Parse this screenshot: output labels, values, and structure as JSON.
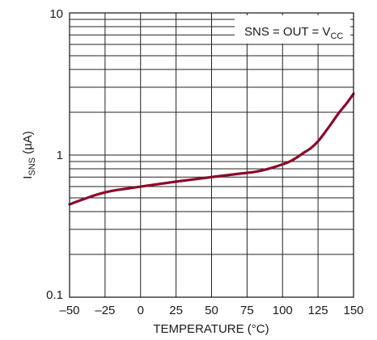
{
  "chart_data": {
    "type": "line",
    "title": "",
    "xlabel": "TEMPERATURE (°C)",
    "ylabel": "I",
    "ylabel_sub": "SNS",
    "ylabel_unit": " (µA)",
    "x_scale": "linear",
    "y_scale": "log",
    "xlim": [
      -50,
      150
    ],
    "ylim": [
      0.1,
      10
    ],
    "x_ticks": [
      -50,
      -25,
      0,
      25,
      50,
      75,
      100,
      125,
      150
    ],
    "x_tick_labels": [
      "–50",
      "–25",
      "0",
      "25",
      "50",
      "75",
      "100",
      "125",
      "150"
    ],
    "y_ticks": [
      0.1,
      1,
      10
    ],
    "y_tick_labels": [
      "0.1",
      "1",
      "10"
    ],
    "grid": true,
    "annotation": {
      "main": "SNS = OUT = V",
      "sub": "CC"
    },
    "series": [
      {
        "color": "#8b0a2a",
        "x": [
          -50,
          -40,
          -30,
          -20,
          -10,
          0,
          10,
          20,
          30,
          40,
          50,
          60,
          70,
          80,
          90,
          100,
          105,
          110,
          115,
          120,
          125,
          130,
          135,
          140,
          145,
          150
        ],
        "y": [
          0.45,
          0.49,
          0.53,
          0.56,
          0.58,
          0.6,
          0.62,
          0.64,
          0.66,
          0.68,
          0.7,
          0.72,
          0.74,
          0.76,
          0.8,
          0.86,
          0.9,
          0.96,
          1.04,
          1.12,
          1.25,
          1.45,
          1.7,
          2.0,
          2.3,
          2.7
        ]
      }
    ]
  }
}
